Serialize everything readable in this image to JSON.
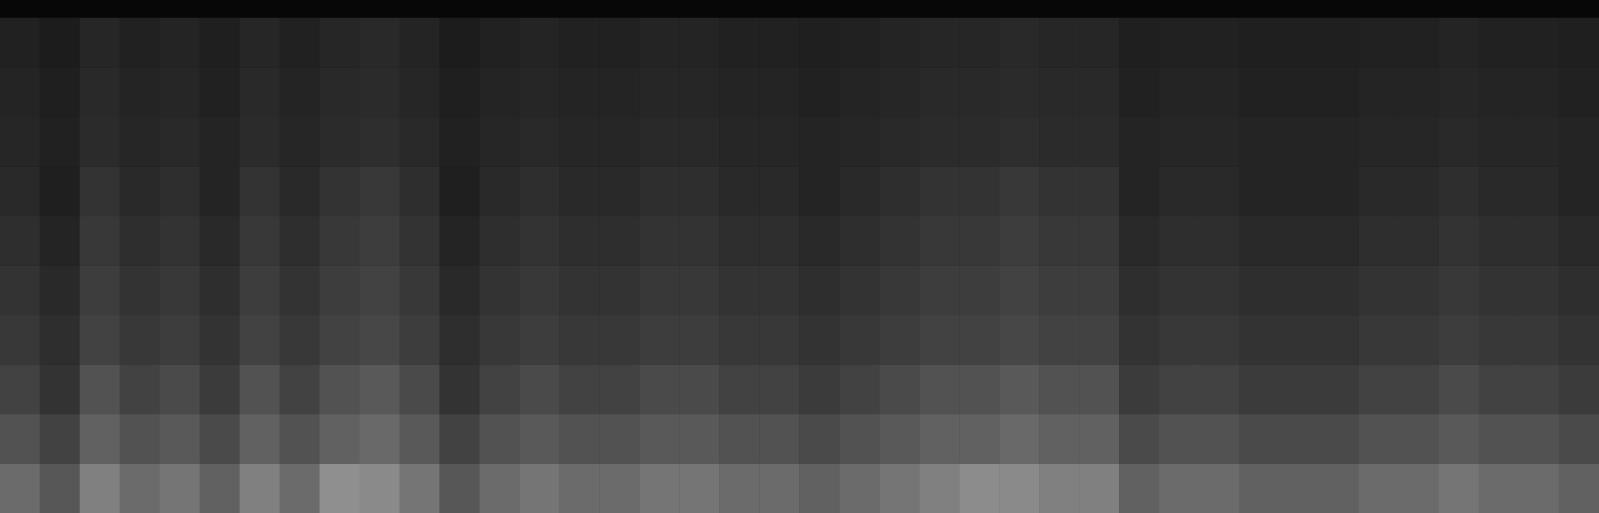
{
  "chart_data": {
    "type": "heatmap",
    "tick_labels": false,
    "zlim": [
      0,
      100
    ],
    "cells": [
      [
        42,
        34,
        50,
        42,
        46,
        38,
        50,
        42,
        56,
        54,
        46,
        34,
        42,
        46,
        42,
        42,
        46,
        46,
        42,
        42,
        38,
        42,
        46,
        50,
        55,
        54,
        50,
        50,
        38,
        42,
        42,
        38,
        38,
        38,
        42,
        42,
        46,
        42,
        42,
        38
      ],
      [
        32,
        26,
        38,
        32,
        35,
        29,
        38,
        32,
        38,
        41,
        35,
        26,
        32,
        35,
        32,
        32,
        35,
        35,
        32,
        32,
        29,
        32,
        35,
        38,
        38,
        41,
        38,
        38,
        29,
        32,
        32,
        29,
        29,
        29,
        32,
        32,
        35,
        32,
        32,
        29
      ],
      [
        26,
        20,
        32,
        26,
        29,
        23,
        32,
        26,
        32,
        35,
        29,
        20,
        26,
        29,
        26,
        26,
        29,
        29,
        26,
        26,
        23,
        26,
        29,
        32,
        32,
        35,
        32,
        32,
        23,
        26,
        26,
        23,
        23,
        23,
        26,
        26,
        29,
        26,
        26,
        23
      ],
      [
        22,
        18,
        26,
        22,
        24,
        20,
        26,
        22,
        26,
        28,
        24,
        18,
        22,
        24,
        22,
        22,
        24,
        24,
        22,
        22,
        20,
        22,
        24,
        26,
        26,
        28,
        26,
        26,
        20,
        22,
        22,
        20,
        20,
        20,
        22,
        22,
        24,
        22,
        22,
        20
      ],
      [
        20,
        16,
        24,
        20,
        22,
        18,
        24,
        20,
        24,
        26,
        22,
        16,
        20,
        22,
        20,
        20,
        22,
        22,
        20,
        20,
        18,
        20,
        22,
        24,
        24,
        26,
        24,
        24,
        18,
        20,
        20,
        18,
        18,
        18,
        20,
        20,
        22,
        20,
        20,
        18
      ],
      [
        18,
        14,
        22,
        18,
        20,
        16,
        22,
        18,
        22,
        24,
        20,
        14,
        18,
        20,
        18,
        18,
        20,
        20,
        18,
        18,
        16,
        18,
        20,
        22,
        22,
        24,
        22,
        22,
        16,
        18,
        18,
        16,
        16,
        16,
        18,
        18,
        20,
        18,
        18,
        16
      ],
      [
        16,
        12,
        20,
        16,
        18,
        14,
        20,
        16,
        20,
        22,
        18,
        12,
        16,
        18,
        16,
        16,
        18,
        18,
        16,
        16,
        14,
        16,
        18,
        20,
        20,
        22,
        20,
        20,
        14,
        16,
        16,
        14,
        14,
        14,
        16,
        16,
        18,
        16,
        16,
        14
      ],
      [
        15,
        13,
        17,
        15,
        16,
        14,
        17,
        15,
        17,
        18,
        16,
        13,
        15,
        16,
        15,
        15,
        16,
        16,
        15,
        15,
        14,
        15,
        16,
        17,
        17,
        18,
        17,
        17,
        14,
        15,
        15,
        14,
        14,
        14,
        15,
        15,
        16,
        15,
        15,
        14
      ],
      [
        14,
        12,
        16,
        14,
        15,
        13,
        16,
        14,
        16,
        17,
        15,
        12,
        14,
        15,
        14,
        14,
        15,
        15,
        14,
        14,
        13,
        14,
        15,
        16,
        16,
        17,
        16,
        16,
        13,
        14,
        14,
        13,
        13,
        13,
        14,
        14,
        15,
        14,
        14,
        13
      ],
      [
        13,
        11,
        15,
        13,
        14,
        12,
        15,
        13,
        15,
        16,
        14,
        11,
        13,
        14,
        13,
        13,
        14,
        14,
        13,
        13,
        12,
        13,
        14,
        15,
        15,
        16,
        15,
        15,
        12,
        13,
        13,
        12,
        12,
        12,
        13,
        13,
        14,
        13,
        13,
        12
      ]
    ]
  }
}
